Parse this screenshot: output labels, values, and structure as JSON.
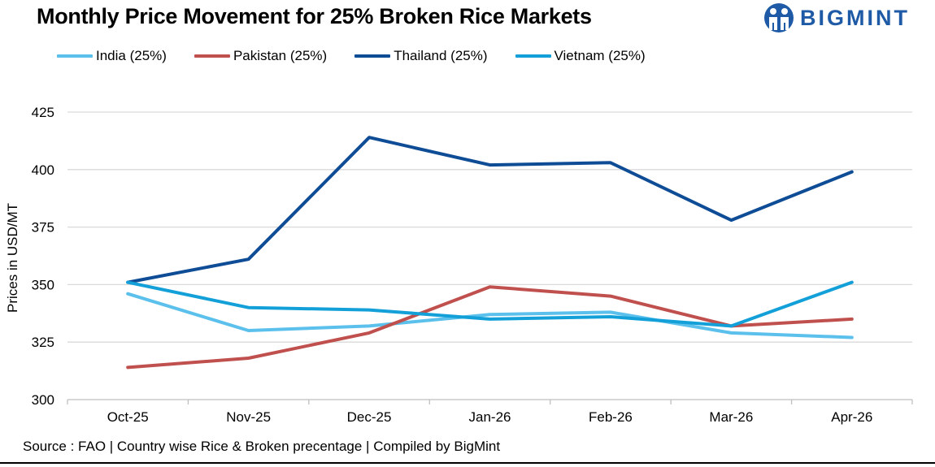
{
  "title": "Monthly Price Movement for 25% Broken Rice Markets",
  "brand": {
    "name": "BIGMINT",
    "logo_icon": "people-globe-logo-icon",
    "color": "#1f5aa6"
  },
  "source": "Source : FAO | Country wise Rice & Broken precentage | Compiled by BigMint",
  "chart_data": {
    "type": "line",
    "title": "Monthly Price Movement for 25% Broken Rice Markets",
    "xlabel": "",
    "ylabel": "Prices in USD/MT",
    "categories": [
      "Oct-25",
      "Nov-25",
      "Dec-25",
      "Jan-26",
      "Feb-26",
      "Mar-26",
      "Apr-26"
    ],
    "ylim": [
      300,
      425
    ],
    "yticks": [
      "300",
      "325",
      "350",
      "375",
      "400",
      "425"
    ],
    "grid": true,
    "legend_position": "top-left",
    "series": [
      {
        "name": "India (25%)",
        "color": "#5bc0eb",
        "values": [
          346,
          330,
          332,
          337,
          338,
          329,
          327
        ]
      },
      {
        "name": "Pakistan (25%)",
        "color": "#c0504d",
        "values": [
          314,
          318,
          329,
          349,
          345,
          332,
          335
        ]
      },
      {
        "name": "Thailand (25%)",
        "color": "#0e4c96",
        "values": [
          351,
          361,
          414,
          402,
          403,
          378,
          399
        ]
      },
      {
        "name": "Vietnam (25%)",
        "color": "#13a0d8",
        "values": [
          351,
          340,
          339,
          335,
          336,
          332,
          351
        ]
      }
    ]
  }
}
